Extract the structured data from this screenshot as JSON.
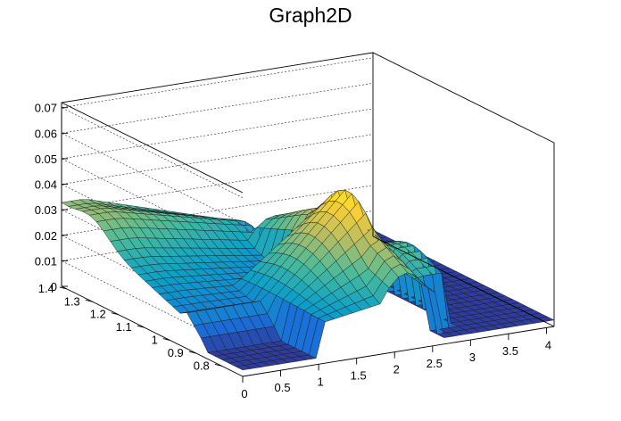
{
  "chart_data": {
    "type": "surface",
    "title": "Graph2D",
    "x_ticks": [
      "0",
      "0.5",
      "1",
      "1.5",
      "2",
      "2.5",
      "3",
      "3.5",
      "4"
    ],
    "y_ticks": [
      "0.8",
      "0.9",
      "1",
      "1.1",
      "1.2",
      "1.3",
      "1.4"
    ],
    "z_ticks": [
      "0",
      "0.01",
      "0.02",
      "0.03",
      "0.04",
      "0.05",
      "0.06",
      "0.07"
    ],
    "xlim": [
      0,
      4.1
    ],
    "ylim": [
      0.72,
      1.42
    ],
    "zlim": [
      0,
      0.072
    ],
    "grid": true,
    "colormap": "parula",
    "colors": [
      "#352a87",
      "#1a6fd8",
      "#0da1c7",
      "#4dbb99",
      "#b7bd63",
      "#f9cf33",
      "#f9fb0e"
    ]
  }
}
